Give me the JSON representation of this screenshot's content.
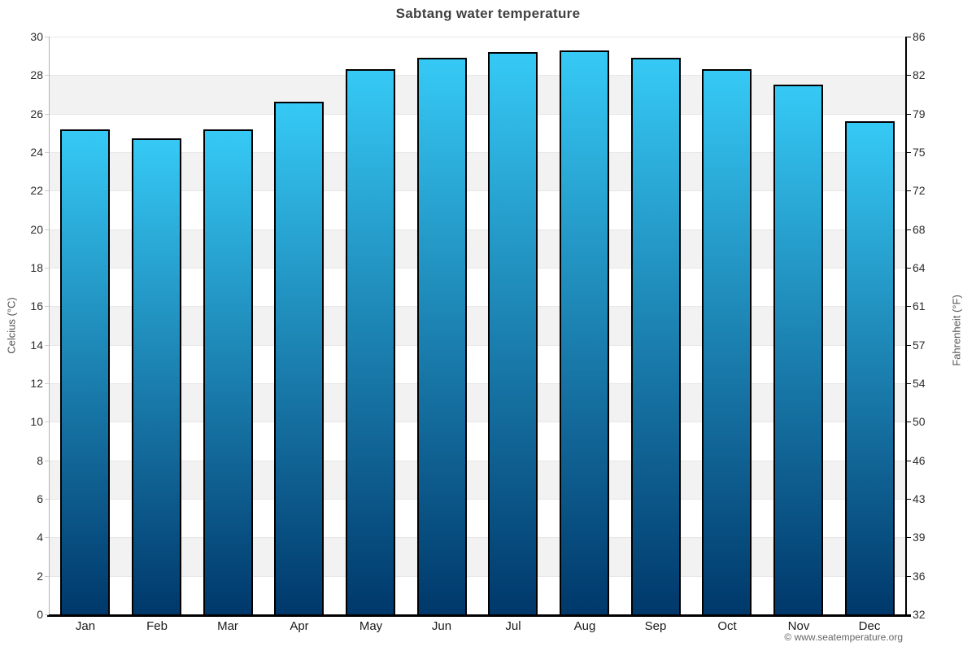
{
  "title": "Sabtang water temperature",
  "footer": {
    "credit": "© www.seatemperature.org"
  },
  "chart_data": {
    "type": "bar",
    "title": "Sabtang water temperature",
    "categories": [
      "Jan",
      "Feb",
      "Mar",
      "Apr",
      "May",
      "Jun",
      "Jul",
      "Aug",
      "Sep",
      "Oct",
      "Nov",
      "Dec"
    ],
    "series": [
      {
        "name": "Water temperature (°C)",
        "values": [
          25.2,
          24.7,
          25.2,
          26.6,
          28.3,
          28.9,
          29.2,
          29.3,
          28.9,
          28.3,
          27.5,
          25.6
        ]
      }
    ],
    "ylabel_left": "Celcius (°C)",
    "ylabel_right": "Fahrenheit (°F)",
    "ylim": [
      0,
      30
    ],
    "yticks_celsius": [
      0,
      2,
      4,
      6,
      8,
      10,
      12,
      14,
      16,
      18,
      20,
      22,
      24,
      26,
      28,
      30
    ],
    "yticks_fahrenheit_labels": [
      "32",
      "36",
      "39",
      "43",
      "46",
      "50",
      "54",
      "57",
      "61",
      "64",
      "68",
      "72",
      "75",
      "79",
      "82",
      "86"
    ],
    "grid": "alternating horizontal bands, gridline every 2°C",
    "legend": "none",
    "colors": {
      "bar_gradient_top": "#36c9f5",
      "bar_gradient_bottom": "#00386b",
      "bar_border": "#000000",
      "band_shaded": "#f2f2f2",
      "band_plain": "#ffffff",
      "gridline": "#e7e7e7",
      "left_axis_line": "#b3b3b3",
      "right_axis_line": "#000000",
      "bottom_axis_line": "#000000",
      "left_tick": "#cccccc",
      "right_tick": "#000000"
    }
  }
}
